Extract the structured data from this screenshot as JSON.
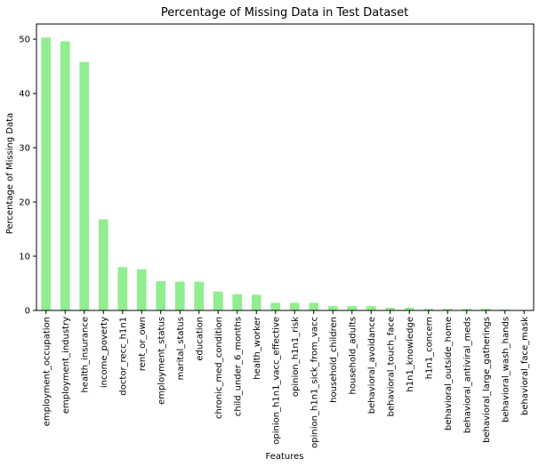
{
  "chart_data": {
    "type": "bar",
    "title": "Percentage of Missing Data in Test Dataset",
    "xlabel": "Features",
    "ylabel": "Percentage of Missing Data",
    "ylim": [
      0,
      52.8
    ],
    "yticks": [
      0,
      10,
      20,
      30,
      40,
      50
    ],
    "grid": false,
    "bar_color": "#90ee90",
    "categories": [
      "employment_occupation",
      "employment_industry",
      "health_insurance",
      "income_poverty",
      "doctor_recc_h1n1",
      "rent_or_own",
      "employment_status",
      "marital_status",
      "education",
      "chronic_med_condition",
      "child_under_6_months",
      "health_worker",
      "opinion_h1n1_vacc_effective",
      "opinion_h1n1_risk",
      "opinion_h1n1_sick_from_vacc",
      "household_children",
      "household_adults",
      "behavioral_avoidance",
      "behavioral_touch_face",
      "h1n1_knowledge",
      "h1n1_concern",
      "behavioral_outside_home",
      "behavioral_antiviral_meds",
      "behavioral_large_gatherings",
      "behavioral_wash_hands",
      "behavioral_face_mask"
    ],
    "values": [
      50.3,
      49.6,
      45.8,
      16.8,
      8.0,
      7.6,
      5.4,
      5.3,
      5.3,
      3.5,
      3.0,
      2.9,
      1.4,
      1.4,
      1.4,
      0.8,
      0.8,
      0.8,
      0.5,
      0.5,
      0.3,
      0.3,
      0.3,
      0.3,
      0.15,
      0.07
    ]
  }
}
